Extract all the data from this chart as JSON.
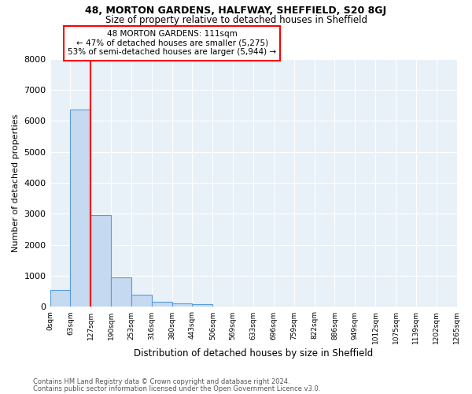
{
  "title1": "48, MORTON GARDENS, HALFWAY, SHEFFIELD, S20 8GJ",
  "title2": "Size of property relative to detached houses in Sheffield",
  "xlabel": "Distribution of detached houses by size in Sheffield",
  "ylabel": "Number of detached properties",
  "bar_values": [
    550,
    6350,
    2950,
    950,
    390,
    175,
    110,
    90,
    0,
    0,
    0,
    0,
    0,
    0,
    0,
    0,
    0,
    0,
    0,
    0
  ],
  "bar_color": "#c5d9f1",
  "bar_edge_color": "#5b9bd5",
  "x_labels": [
    "0sqm",
    "63sqm",
    "127sqm",
    "190sqm",
    "253sqm",
    "316sqm",
    "380sqm",
    "443sqm",
    "506sqm",
    "569sqm",
    "633sqm",
    "696sqm",
    "759sqm",
    "822sqm",
    "886sqm",
    "949sqm",
    "1012sqm",
    "1075sqm",
    "1139sqm",
    "1202sqm",
    "1265sqm"
  ],
  "ylim": [
    0,
    8000
  ],
  "yticks": [
    0,
    1000,
    2000,
    3000,
    4000,
    5000,
    6000,
    7000,
    8000
  ],
  "vline_x": 2.0,
  "annotation_text": "48 MORTON GARDENS: 111sqm\n← 47% of detached houses are smaller (5,275)\n53% of semi-detached houses are larger (5,944) →",
  "annotation_box_color": "white",
  "annotation_box_edge": "red",
  "footer1": "Contains HM Land Registry data © Crown copyright and database right 2024.",
  "footer2": "Contains public sector information licensed under the Open Government Licence v3.0.",
  "bg_color": "#e8f0f8"
}
